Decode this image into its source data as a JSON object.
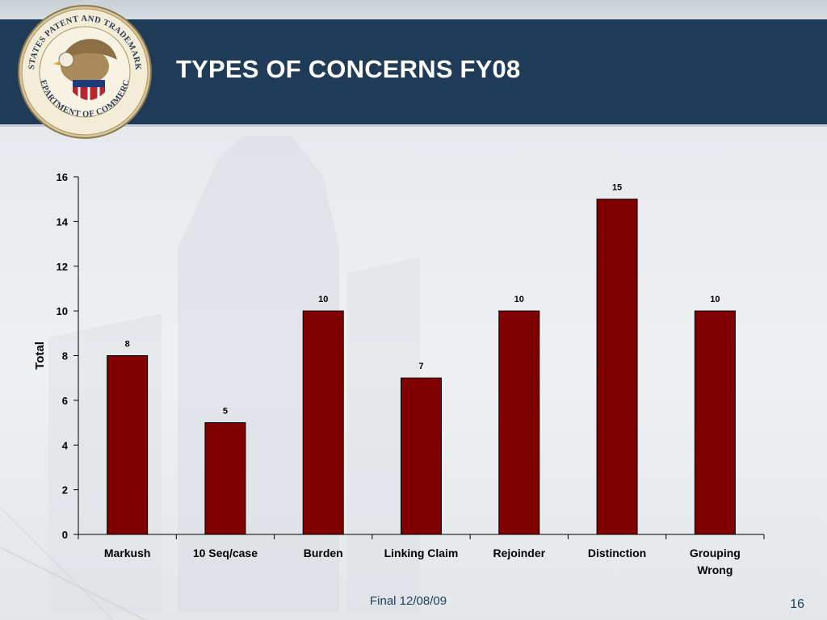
{
  "slide": {
    "title": "TYPES OF CONCERNS FY08",
    "footer": "Final 12/08/09",
    "page_number": "16",
    "seal_text_top": "UNITED STATES PATENT AND TRADEMARK OFFICE",
    "seal_text_bottom": "DEPARTMENT OF COMMERCE"
  },
  "colors": {
    "header_band": "#1f3b57",
    "bar_fill": "#800000",
    "text": "#000000"
  },
  "chart_data": {
    "type": "bar",
    "title": "",
    "xlabel": "",
    "ylabel": "Total",
    "categories": [
      "Markush",
      "10 Seq/case",
      "Burden",
      "Linking Claim",
      "Rejoinder",
      "Distinction",
      "Grouping Wrong"
    ],
    "category_lines": [
      [
        "Markush"
      ],
      [
        "10 Seq/case"
      ],
      [
        "Burden"
      ],
      [
        "Linking Claim"
      ],
      [
        "Rejoinder"
      ],
      [
        "Distinction"
      ],
      [
        "Grouping",
        "Wrong"
      ]
    ],
    "values": [
      8,
      5,
      10,
      7,
      10,
      15,
      10
    ],
    "data_labels": [
      "8",
      "5",
      "10",
      "7",
      "10",
      "15",
      "10"
    ],
    "ylim": [
      0,
      16
    ],
    "yticks": [
      0,
      2,
      4,
      6,
      8,
      10,
      12,
      14,
      16
    ],
    "grid": false,
    "legend": "none"
  }
}
